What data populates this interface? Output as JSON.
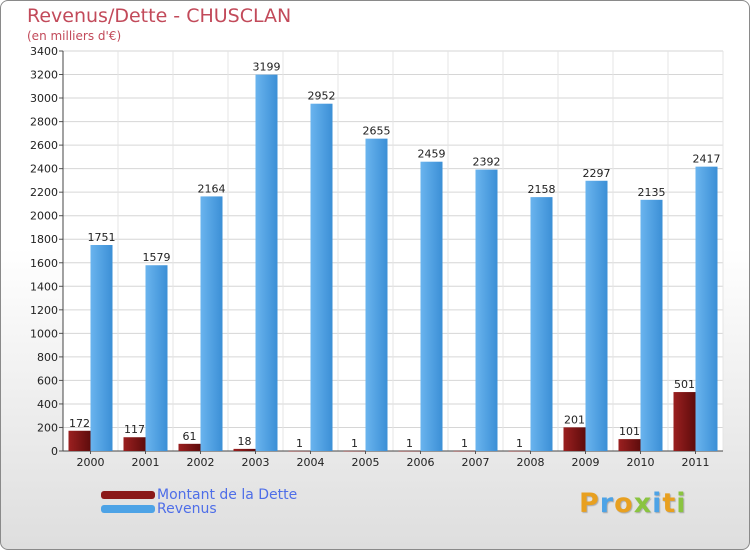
{
  "chart_data": {
    "type": "bar",
    "title": "Revenus/Dette - CHUSCLAN",
    "subtitle": "(en milliers d'€)",
    "categories": [
      "2000",
      "2001",
      "2002",
      "2003",
      "2004",
      "2005",
      "2006",
      "2007",
      "2008",
      "2009",
      "2010",
      "2011"
    ],
    "series": [
      {
        "name": "Montant de la Dette",
        "color": "#8b1a1a",
        "values": [
          172,
          117,
          61,
          18,
          1,
          1,
          1,
          1,
          1,
          201,
          101,
          501
        ]
      },
      {
        "name": "Revenus",
        "color": "#4da3e6",
        "values": [
          1751,
          1579,
          2164,
          3199,
          2952,
          2655,
          2459,
          2392,
          2158,
          2297,
          2135,
          2417
        ]
      }
    ],
    "ylim": [
      0,
      3400
    ],
    "yticks": [
      0,
      200,
      400,
      600,
      800,
      1000,
      1200,
      1400,
      1600,
      1800,
      2000,
      2200,
      2400,
      2600,
      2800,
      3000,
      3200,
      3400
    ],
    "grid": true,
    "legend_position": "bottom-left"
  },
  "branding": {
    "logo_letters": [
      "P",
      "r",
      "o",
      "x",
      "i",
      "t",
      "i"
    ],
    "logo_colors": [
      "#e8a020",
      "#4da3e6",
      "#e8a020",
      "#8ac440",
      "#4da3e6",
      "#e8a020",
      "#8ac440"
    ]
  }
}
